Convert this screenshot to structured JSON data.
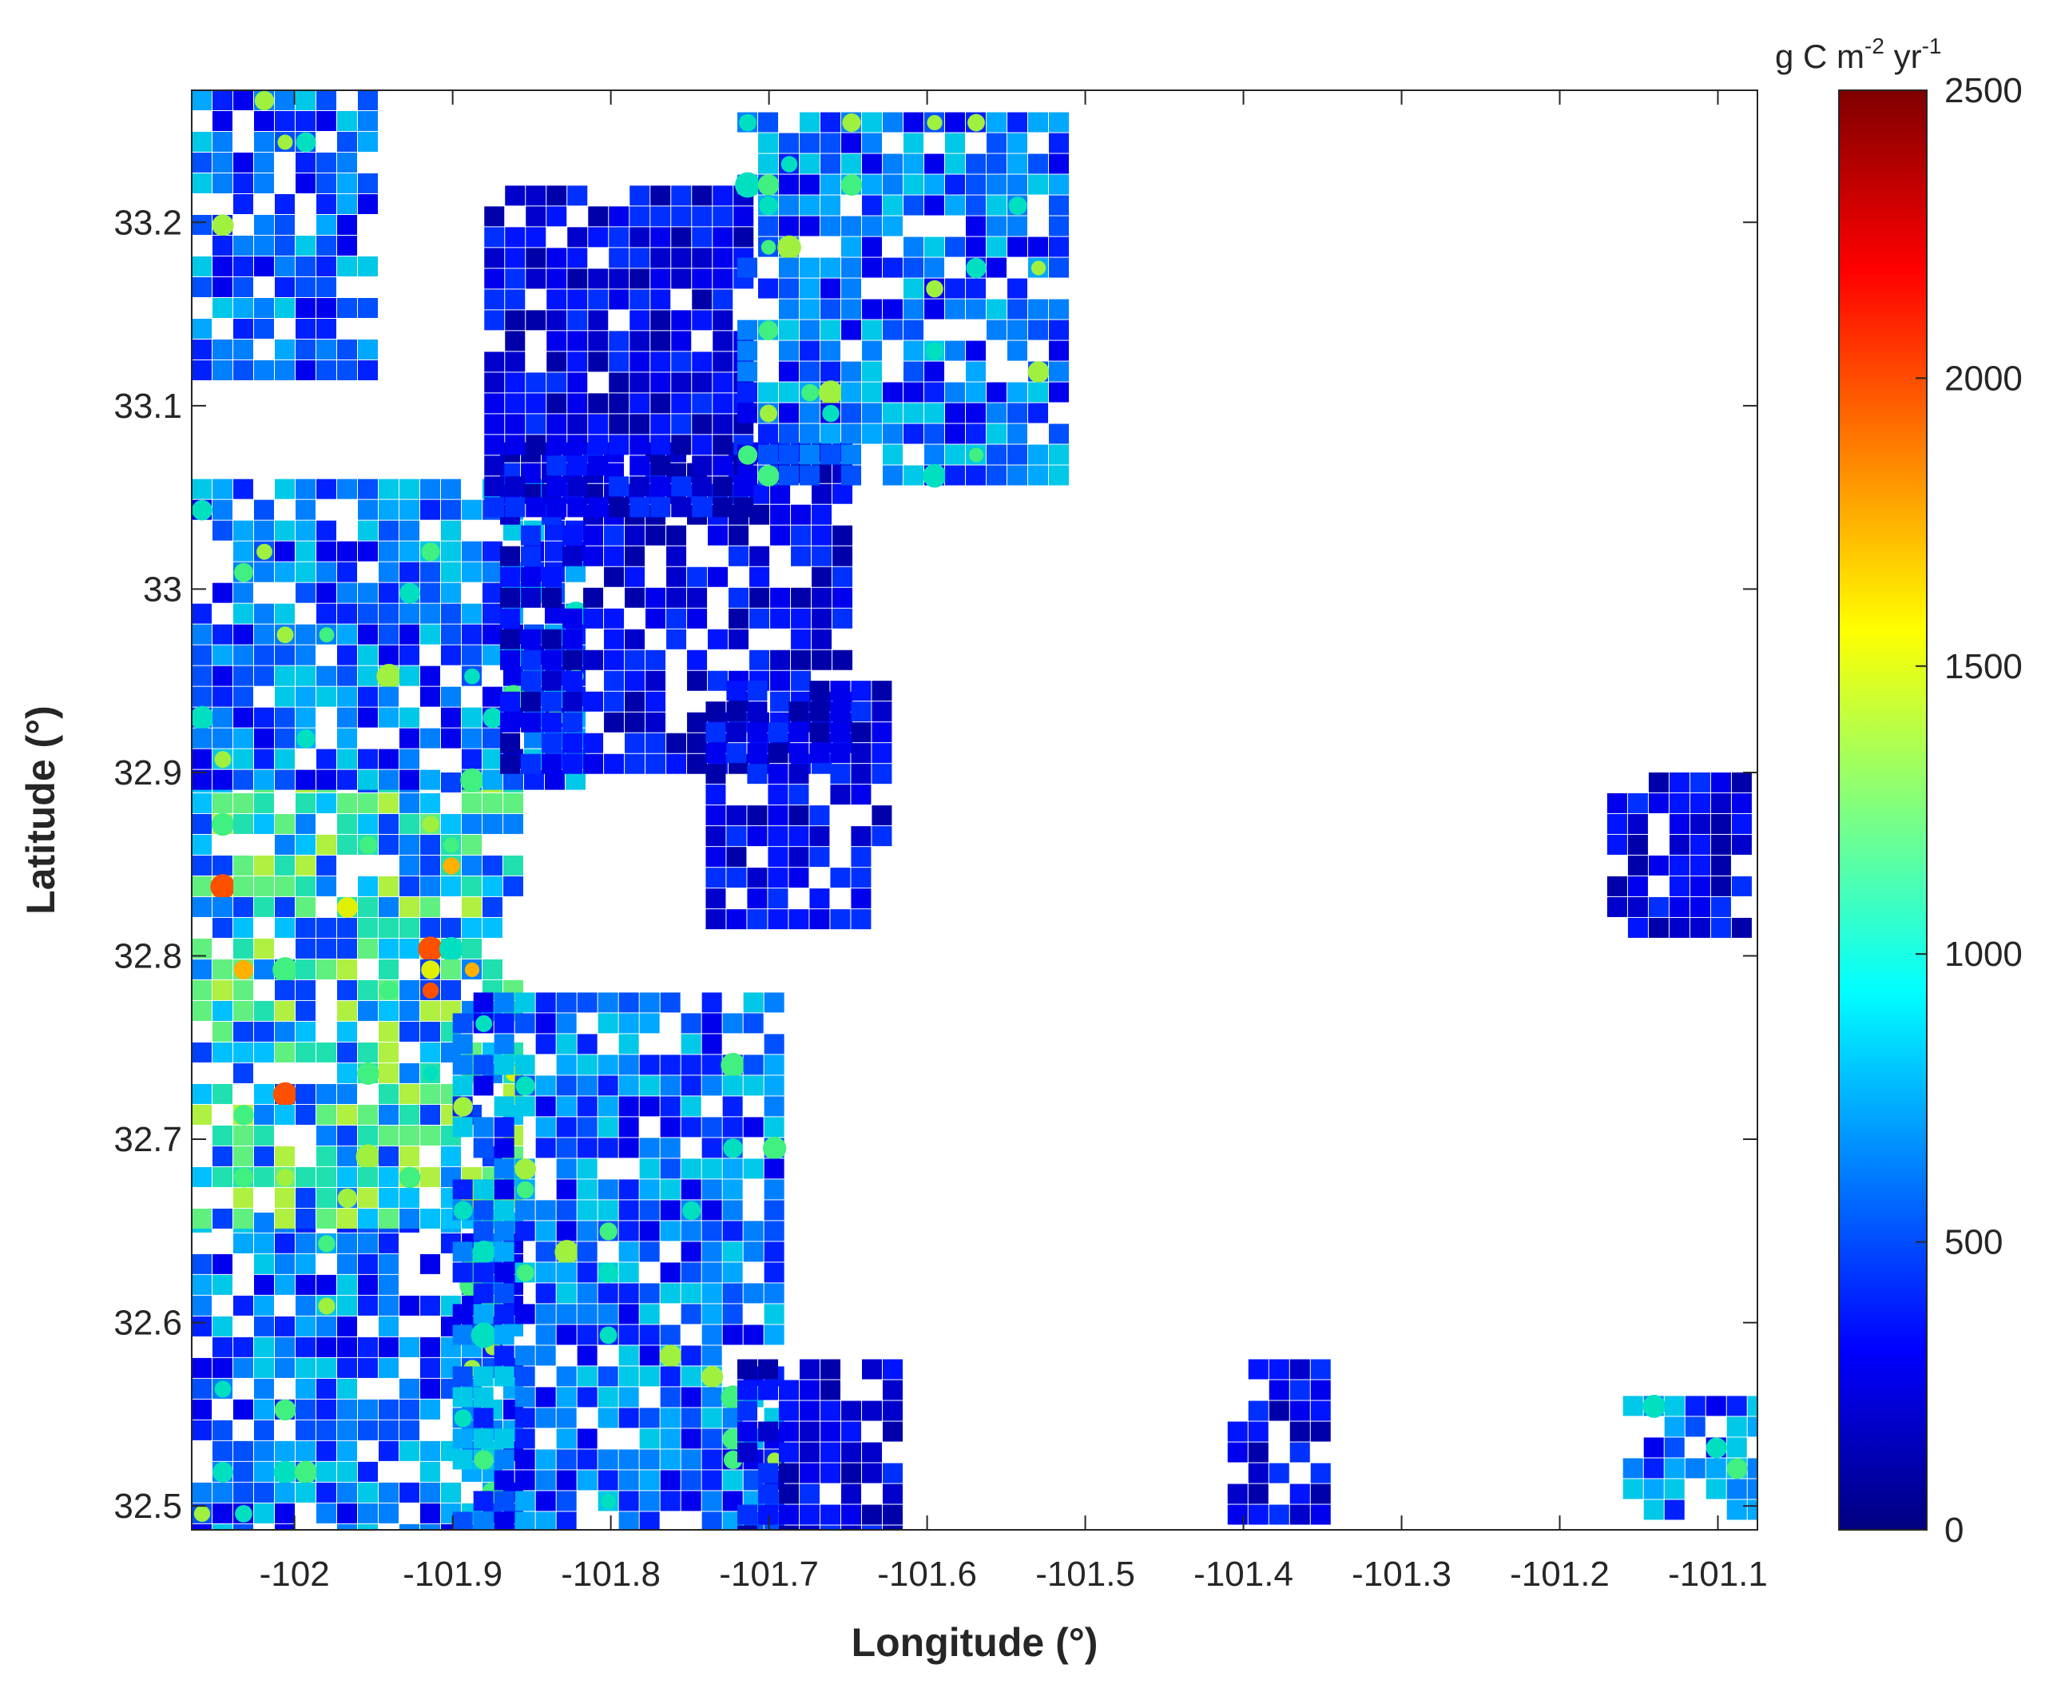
{
  "map": {
    "xlabel": "Longitude (°)",
    "ylabel": "Latitude (°)",
    "xlim": [
      -102.065,
      -101.075
    ],
    "ylim": [
      32.487,
      33.272
    ],
    "x_ticks": [
      {
        "value": -102.0,
        "label": "-102"
      },
      {
        "value": -101.9,
        "label": "-101.9"
      },
      {
        "value": -101.8,
        "label": "-101.8"
      },
      {
        "value": -101.7,
        "label": "-101.7"
      },
      {
        "value": -101.6,
        "label": "-101.6"
      },
      {
        "value": -101.5,
        "label": "-101.5"
      },
      {
        "value": -101.4,
        "label": "-101.4"
      },
      {
        "value": -101.3,
        "label": "-101.3"
      },
      {
        "value": -101.2,
        "label": "-101.2"
      },
      {
        "value": -101.1,
        "label": "-101.1"
      }
    ],
    "y_ticks": [
      {
        "value": 32.5,
        "label": "32.5"
      },
      {
        "value": 32.6,
        "label": "32.6"
      },
      {
        "value": 32.7,
        "label": "32.7"
      },
      {
        "value": 32.8,
        "label": "32.8"
      },
      {
        "value": 32.9,
        "label": "32.9"
      },
      {
        "value": 33.0,
        "label": "33"
      },
      {
        "value": 33.1,
        "label": "33.1"
      },
      {
        "value": 33.2,
        "label": "33.2"
      }
    ],
    "colormap": "jet",
    "grid": false,
    "regions": [
      {
        "lon": [
          -102.065,
          -101.86
        ],
        "lat": [
          32.487,
          32.66
        ],
        "level": "mid"
      },
      {
        "lon": [
          -102.065,
          -101.86
        ],
        "lat": [
          32.66,
          32.9
        ],
        "level": "high"
      },
      {
        "lon": [
          -101.9,
          -101.7
        ],
        "lat": [
          32.487,
          32.78
        ],
        "level": "mid"
      },
      {
        "lon": [
          -101.72,
          -101.62
        ],
        "lat": [
          32.487,
          32.58
        ],
        "level": "low"
      },
      {
        "lon": [
          -102.065,
          -101.82
        ],
        "lat": [
          32.9,
          33.06
        ],
        "level": "mid"
      },
      {
        "lon": [
          -101.87,
          -101.65
        ],
        "lat": [
          32.9,
          33.08
        ],
        "level": "low"
      },
      {
        "lon": [
          -101.74,
          -101.63
        ],
        "lat": [
          32.82,
          32.95
        ],
        "level": "low"
      },
      {
        "lon": [
          -101.88,
          -101.72
        ],
        "lat": [
          33.04,
          33.22
        ],
        "level": "low"
      },
      {
        "lon": [
          -101.72,
          -101.52
        ],
        "lat": [
          33.06,
          33.26
        ],
        "level": "mid"
      },
      {
        "lon": [
          -102.065,
          -101.95
        ],
        "lat": [
          33.12,
          33.272
        ],
        "level": "mid"
      },
      {
        "lon": [
          -101.17,
          -101.09
        ],
        "lat": [
          32.82,
          32.9
        ],
        "level": "low"
      },
      {
        "lon": [
          -101.41,
          -101.35
        ],
        "lat": [
          32.5,
          32.58
        ],
        "level": "low"
      },
      {
        "lon": [
          -101.16,
          -101.08
        ],
        "lat": [
          32.5,
          32.56
        ],
        "level": "mid"
      }
    ]
  },
  "colorbar": {
    "title_base": "g C m",
    "title_exp1": "-2",
    "title_mid": " yr",
    "title_exp2": "-1",
    "min": 0,
    "max": 2500,
    "ticks": [
      {
        "value": 0,
        "label": "0"
      },
      {
        "value": 500,
        "label": "500"
      },
      {
        "value": 1000,
        "label": "1000"
      },
      {
        "value": 1500,
        "label": "1500"
      },
      {
        "value": 2000,
        "label": "2000"
      },
      {
        "value": 2500,
        "label": "2500"
      }
    ],
    "stops": [
      "#00007f",
      "#0000ff",
      "#007fff",
      "#00ffff",
      "#7fff7f",
      "#ffff00",
      "#ff7f00",
      "#ff0000",
      "#7f0000"
    ]
  }
}
